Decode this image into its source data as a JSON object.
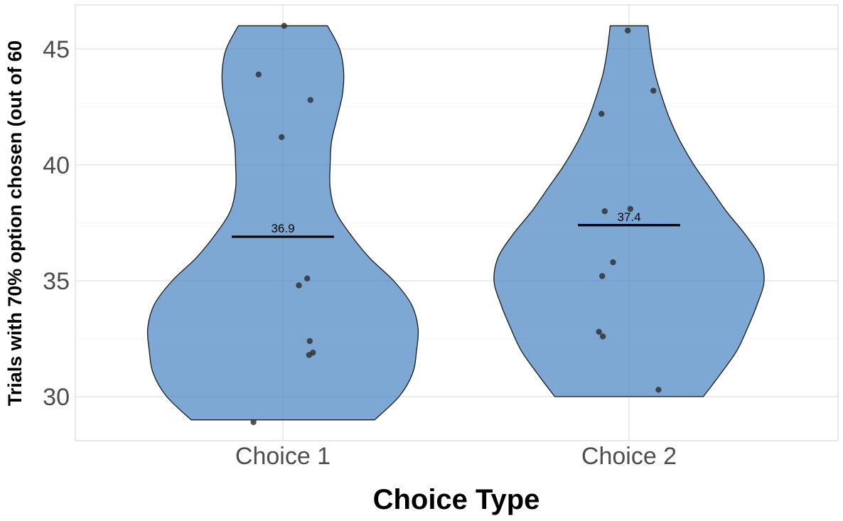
{
  "chart_data": {
    "type": "violin",
    "xlabel": "Choice Type",
    "ylabel": "Trials with 70% option chosen (out of 60",
    "categories": [
      "Choice 1",
      "Choice 2"
    ],
    "ylim": [
      28.1,
      46.9
    ],
    "yticks": [
      30,
      35,
      40,
      45
    ],
    "grid": true,
    "fill_color": "#4a86c2",
    "fill_opacity": 0.72,
    "series": [
      {
        "category": "Choice 1",
        "mean": 36.9,
        "mean_label": "36.9",
        "points": [
          46.0,
          43.9,
          42.8,
          41.2,
          35.1,
          34.8,
          32.4,
          31.9,
          31.8,
          28.9
        ],
        "density": [
          [
            29.0,
            0.68
          ],
          [
            30.0,
            0.86
          ],
          [
            31.0,
            0.96
          ],
          [
            32.0,
            0.99
          ],
          [
            33.0,
            1.0
          ],
          [
            34.0,
            0.95
          ],
          [
            35.0,
            0.82
          ],
          [
            36.0,
            0.64
          ],
          [
            37.0,
            0.5
          ],
          [
            38.0,
            0.39
          ],
          [
            39.0,
            0.35
          ],
          [
            40.0,
            0.35
          ],
          [
            41.0,
            0.36
          ],
          [
            42.0,
            0.4
          ],
          [
            43.0,
            0.44
          ],
          [
            44.0,
            0.45
          ],
          [
            45.0,
            0.42
          ],
          [
            46.0,
            0.33
          ]
        ]
      },
      {
        "category": "Choice 2",
        "mean": 37.4,
        "mean_label": "37.4",
        "points": [
          45.8,
          43.2,
          42.2,
          38.1,
          38.0,
          35.8,
          35.2,
          32.8,
          32.6,
          30.3
        ],
        "density": [
          [
            30.0,
            0.55
          ],
          [
            31.0,
            0.68
          ],
          [
            32.0,
            0.8
          ],
          [
            33.0,
            0.88
          ],
          [
            34.0,
            0.95
          ],
          [
            35.0,
            1.0
          ],
          [
            36.0,
            0.97
          ],
          [
            37.0,
            0.86
          ],
          [
            38.0,
            0.72
          ],
          [
            39.0,
            0.6
          ],
          [
            40.0,
            0.48
          ],
          [
            41.0,
            0.38
          ],
          [
            42.0,
            0.3
          ],
          [
            43.0,
            0.24
          ],
          [
            44.0,
            0.19
          ],
          [
            45.0,
            0.16
          ],
          [
            46.0,
            0.14
          ]
        ]
      }
    ]
  }
}
